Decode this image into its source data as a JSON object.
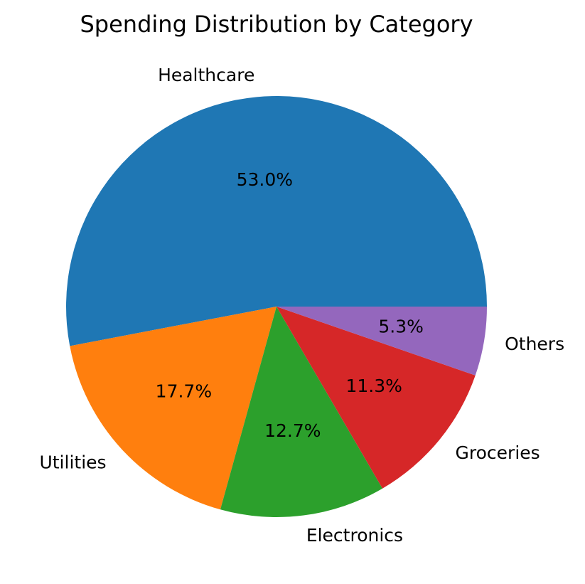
{
  "chart_data": {
    "type": "pie",
    "title": "Spending Distribution by Category",
    "categories": [
      "Healthcare",
      "Utilities",
      "Electronics",
      "Groceries",
      "Others"
    ],
    "values": [
      53.0,
      17.7,
      12.7,
      11.3,
      5.3
    ],
    "percent_labels": [
      "53.0%",
      "17.7%",
      "12.7%",
      "11.3%",
      "5.3%"
    ],
    "colors": [
      "#1f77b4",
      "#ff7f0e",
      "#2ca02c",
      "#d62728",
      "#9467bd"
    ],
    "start_angle_deg": 0,
    "direction": "counterclockwise",
    "legend": "none"
  }
}
